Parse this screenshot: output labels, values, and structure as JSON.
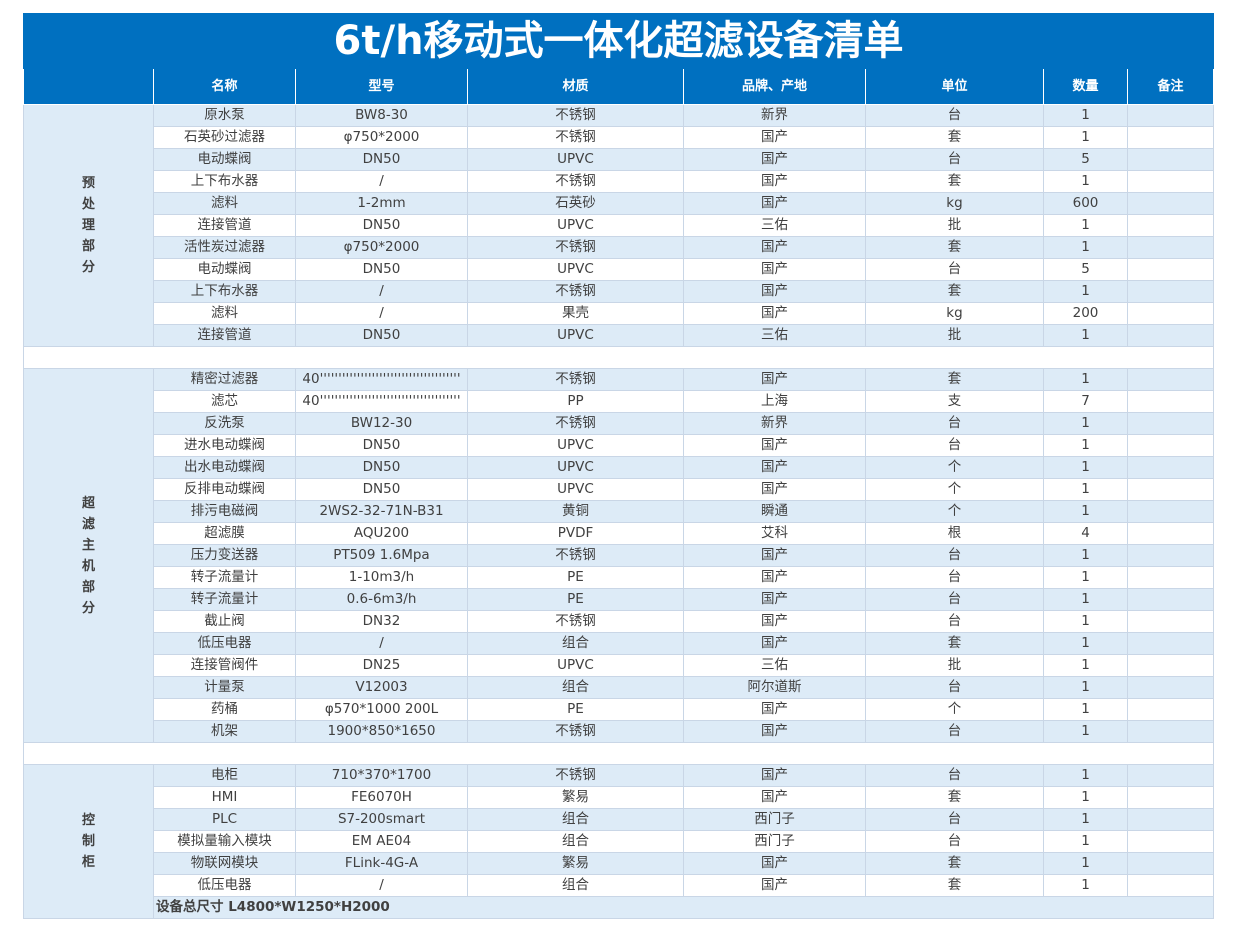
{
  "title": "6t/h移动式一体化超滤设备清单",
  "headers": [
    "名称",
    "型号",
    "材质",
    "品牌、产地",
    "单位",
    "数量",
    "备注"
  ],
  "sections": [
    {
      "label": "预处理部分",
      "rows": [
        [
          "原水泵",
          "BW8-30",
          "不锈钢",
          "新界",
          "台",
          1
        ],
        [
          "石英砂过滤器",
          "φ750*2000",
          "不锈钢",
          "国产",
          "套",
          1
        ],
        [
          "电动蝶阀",
          "DN50",
          "UPVC",
          "国产",
          "台",
          5
        ],
        [
          "上下布水器",
          "/",
          "不锈钢",
          "国产",
          "套",
          1
        ],
        [
          "滤料",
          "1-2mm",
          "石英砂",
          "国产",
          "kg",
          600
        ],
        [
          "连接管道",
          "DN50",
          "UPVC",
          "三佑",
          "批",
          1
        ],
        [
          "活性炭过滤器",
          "φ750*2000",
          "不锈钢",
          "国产",
          "套",
          1
        ],
        [
          "电动蝶阀",
          "DN50",
          "UPVC",
          "国产",
          "台",
          5
        ],
        [
          "上下布水器",
          "/",
          "不锈钢",
          "国产",
          "套",
          1
        ],
        [
          "滤料",
          "/",
          "果壳",
          "国产",
          "kg",
          200
        ],
        [
          "连接管道",
          "DN50",
          "UPVC",
          "三佑",
          "批",
          1
        ]
      ]
    },
    {
      "label": "超滤主机部分",
      "rows": [
        [
          "精密过滤器",
          "40''''''''''''''''''''''''''''''''''''''",
          "不锈钢",
          "国产",
          "套",
          1
        ],
        [
          "滤芯",
          "40''''''''''''''''''''''''''''''''''''''",
          "PP",
          "上海",
          "支",
          7
        ],
        [
          "反洗泵",
          "BW12-30",
          "不锈钢",
          "新界",
          "台",
          1
        ],
        [
          "进水电动蝶阀",
          "DN50",
          "UPVC",
          "国产",
          "台",
          1
        ],
        [
          "出水电动蝶阀",
          "DN50",
          "UPVC",
          "国产",
          "个",
          1
        ],
        [
          "反排电动蝶阀",
          "DN50",
          "UPVC",
          "国产",
          "个",
          1
        ],
        [
          "排污电磁阀",
          "2WS2-32-71N-B31",
          "黄铜",
          "瞬通",
          "个",
          1
        ],
        [
          "超滤膜",
          "AQU200",
          "PVDF",
          "艾科",
          "根",
          4
        ],
        [
          "压力变送器",
          "PT509 1.6Mpa",
          "不锈钢",
          "国产",
          "台",
          1
        ],
        [
          "转子流量计",
          "1-10m3/h",
          "PE",
          "国产",
          "台",
          1
        ],
        [
          "转子流量计",
          "0.6-6m3/h",
          "PE",
          "国产",
          "台",
          1
        ],
        [
          "截止阀",
          "DN32",
          "不锈钢",
          "国产",
          "台",
          1
        ],
        [
          "低压电器",
          "/",
          "组合",
          "国产",
          "套",
          1
        ],
        [
          "连接管阀件",
          "DN25",
          "UPVC",
          "三佑",
          "批",
          1
        ],
        [
          "计量泵",
          "V12003",
          "组合",
          "阿尔道斯",
          "台",
          1
        ],
        [
          "药桶",
          "φ570*1000 200L",
          "PE",
          "国产",
          "个",
          1
        ],
        [
          "机架",
          "1900*850*1650",
          "不锈钢",
          "国产",
          "台",
          1
        ]
      ]
    },
    {
      "label": "控制柜",
      "rows": [
        [
          "电柜",
          "710*370*1700",
          "不锈钢",
          "国产",
          "台",
          1
        ],
        [
          "HMI",
          "FE6070H",
          "繁易",
          "国产",
          "套",
          1
        ],
        [
          "PLC",
          "S7-200smart",
          "组合",
          "西门子",
          "台",
          1
        ],
        [
          "模拟量输入模块",
          "EM AE04",
          "组合",
          "西门子",
          "台",
          1
        ],
        [
          "物联网模块",
          "FLink-4G-A",
          "繁易",
          "国产",
          "套",
          1
        ],
        [
          "低压电器",
          "/",
          "组合",
          "国产",
          "套",
          1
        ]
      ]
    }
  ],
  "footer": "设备总尺寸 L4800*W1250*H2000"
}
